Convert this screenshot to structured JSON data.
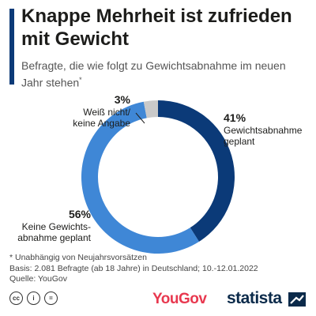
{
  "header": {
    "title": "Knappe Mehrheit ist zufrieden mit Gewicht",
    "subtitle": "Befragte, die wie folgt zu Gewichtsabnahme im neuen Jahr stehen",
    "subtitle_mark": "*"
  },
  "chart_data": {
    "type": "pie",
    "style": "donut",
    "title": "Knappe Mehrheit ist zufrieden mit Gewicht",
    "subtitle": "Befragte, die wie folgt zu Gewichtsabnahme im neuen Jahr stehen*",
    "unit": "%",
    "slices": [
      {
        "label_line1": "Gewichtsabnahme",
        "label_line2": "geplant",
        "value": 41,
        "value_label": "41%",
        "color": "#0b3a78"
      },
      {
        "label_line1": "Keine Gewichts-",
        "label_line2": "abnahme geplant",
        "value": 56,
        "value_label": "56%",
        "color": "#3f87d6"
      },
      {
        "label_line1": "Weiß nicht/",
        "label_line2": "keine Angabe",
        "value": 3,
        "value_label": "3%",
        "color": "#c9c9c9"
      }
    ],
    "center_icon": "scale-icon"
  },
  "footer": {
    "note": "* Unabhängig von Neujahrsvorsätzen",
    "basis": "Basis: 2.081 Befragte (ab 18 Jahre) in Deutschland; 10.-12.01.2022",
    "source": "Quelle: YouGov"
  },
  "branding": {
    "yougov": "YouGov",
    "statista": "statista",
    "license_icons": [
      "cc-icon",
      "by-icon",
      "nd-icon"
    ],
    "license_glyphs": [
      "cc",
      "i",
      "="
    ]
  }
}
